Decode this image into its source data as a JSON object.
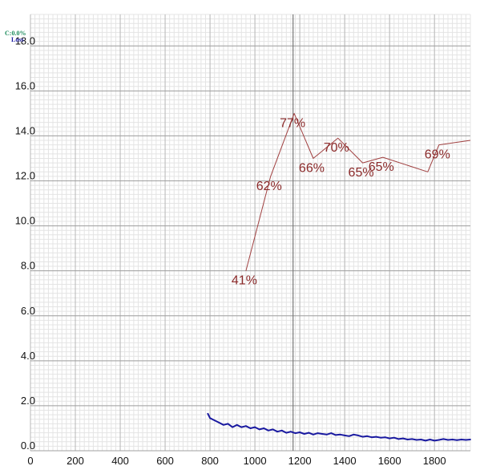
{
  "chart_data": {
    "type": "line",
    "legend": [
      {
        "label": "C:0.0%",
        "color": "#1a8a5a"
      },
      {
        "label": "Loss",
        "color": "#1a1aa0"
      }
    ],
    "xlim": [
      0,
      1960
    ],
    "ylim": [
      0,
      19.4
    ],
    "x_ticks": [
      0,
      200,
      400,
      600,
      800,
      1000,
      1200,
      1400,
      1600,
      1800
    ],
    "y_ticks": [
      0.0,
      2.0,
      4.0,
      6.0,
      8.0,
      10.0,
      12.0,
      14.0,
      16.0,
      18.0
    ],
    "y_tick_labels": [
      "0.0",
      "2.0",
      "4.0",
      "6.0",
      "8.0",
      "10.0",
      "12.0",
      "14.0",
      "16.0",
      "18.0"
    ],
    "current_x": 1170,
    "grid": true,
    "series": [
      {
        "color": "#1a1aa0",
        "values": [
          [
            790,
            1.65
          ],
          [
            800,
            1.45
          ],
          [
            820,
            1.35
          ],
          [
            840,
            1.25
          ],
          [
            860,
            1.15
          ],
          [
            880,
            1.2
          ],
          [
            900,
            1.05
          ],
          [
            920,
            1.15
          ],
          [
            940,
            1.05
          ],
          [
            960,
            1.1
          ],
          [
            980,
            1.0
          ],
          [
            1000,
            1.05
          ],
          [
            1020,
            0.95
          ],
          [
            1040,
            1.0
          ],
          [
            1060,
            0.9
          ],
          [
            1080,
            0.95
          ],
          [
            1100,
            0.85
          ],
          [
            1120,
            0.9
          ],
          [
            1140,
            0.8
          ],
          [
            1160,
            0.85
          ],
          [
            1180,
            0.78
          ],
          [
            1200,
            0.82
          ],
          [
            1220,
            0.75
          ],
          [
            1240,
            0.8
          ],
          [
            1260,
            0.72
          ],
          [
            1280,
            0.78
          ],
          [
            1300,
            0.75
          ],
          [
            1320,
            0.72
          ],
          [
            1340,
            0.78
          ],
          [
            1360,
            0.7
          ],
          [
            1380,
            0.72
          ],
          [
            1400,
            0.68
          ],
          [
            1420,
            0.65
          ],
          [
            1440,
            0.72
          ],
          [
            1460,
            0.68
          ],
          [
            1480,
            0.62
          ],
          [
            1500,
            0.65
          ],
          [
            1520,
            0.6
          ],
          [
            1540,
            0.62
          ],
          [
            1560,
            0.58
          ],
          [
            1580,
            0.6
          ],
          [
            1600,
            0.55
          ],
          [
            1620,
            0.58
          ],
          [
            1640,
            0.52
          ],
          [
            1660,
            0.55
          ],
          [
            1680,
            0.5
          ],
          [
            1700,
            0.52
          ],
          [
            1720,
            0.48
          ],
          [
            1740,
            0.5
          ],
          [
            1760,
            0.45
          ],
          [
            1780,
            0.5
          ],
          [
            1800,
            0.45
          ],
          [
            1820,
            0.48
          ],
          [
            1840,
            0.52
          ],
          [
            1860,
            0.48
          ],
          [
            1880,
            0.5
          ],
          [
            1900,
            0.47
          ],
          [
            1920,
            0.5
          ],
          [
            1940,
            0.48
          ],
          [
            1960,
            0.5
          ]
        ]
      },
      {
        "color": "#a04040",
        "values": [
          [
            960,
            8.0
          ],
          [
            1070,
            12.2
          ],
          [
            1175,
            15.0
          ],
          [
            1260,
            13.0
          ],
          [
            1370,
            13.9
          ],
          [
            1480,
            12.8
          ],
          [
            1570,
            13.05
          ],
          [
            1770,
            12.4
          ],
          [
            1820,
            13.6
          ],
          [
            1960,
            13.8
          ]
        ]
      }
    ],
    "annotations": [
      {
        "text": "41%",
        "x": 960,
        "y": 8.0
      },
      {
        "text": "62%",
        "x": 1070,
        "y": 12.2
      },
      {
        "text": "77%",
        "x": 1175,
        "y": 15.0
      },
      {
        "text": "66%",
        "x": 1260,
        "y": 13.0
      },
      {
        "text": "70%",
        "x": 1370,
        "y": 13.9
      },
      {
        "text": "65%",
        "x": 1480,
        "y": 12.8
      },
      {
        "text": "65%",
        "x": 1570,
        "y": 13.05
      },
      {
        "text": "69%",
        "x": 1820,
        "y": 13.6
      }
    ]
  }
}
